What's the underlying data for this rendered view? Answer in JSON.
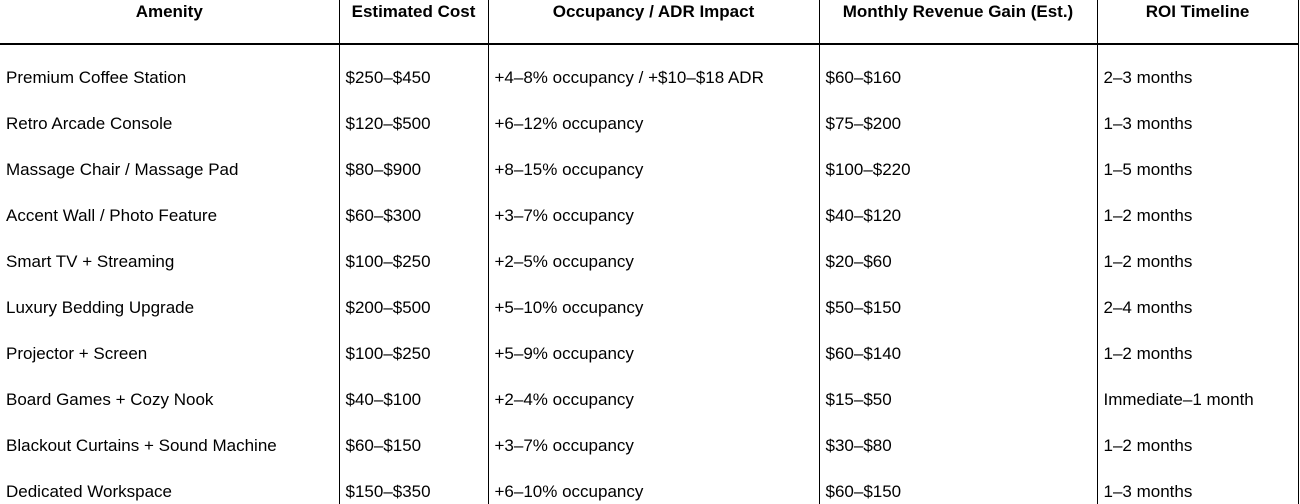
{
  "table": {
    "header": [
      "Amenity",
      "Estimated Cost",
      "Occupancy / ADR Impact",
      "Monthly Revenue Gain (Est.)",
      "ROI Timeline"
    ],
    "rows": [
      [
        "Premium Coffee Station",
        "$250–$450",
        "+4–8% occupancy / +$10–$18 ADR",
        "$60–$160",
        "2–3 months"
      ],
      [
        "Retro Arcade Console",
        "$120–$500",
        "+6–12% occupancy",
        "$75–$200",
        "1–3 months"
      ],
      [
        "Massage Chair / Massage Pad",
        "$80–$900",
        "+8–15% occupancy",
        "$100–$220",
        "1–5 months"
      ],
      [
        "Accent Wall / Photo Feature",
        "$60–$300",
        "+3–7% occupancy",
        "$40–$120",
        "1–2 months"
      ],
      [
        "Smart TV + Streaming",
        "$100–$250",
        "+2–5% occupancy",
        "$20–$60",
        "1–2 months"
      ],
      [
        "Luxury Bedding Upgrade",
        "$200–$500",
        "+5–10% occupancy",
        "$50–$150",
        "2–4 months"
      ],
      [
        "Projector + Screen",
        "$100–$250",
        "+5–9% occupancy",
        "$60–$140",
        "1–2 months"
      ],
      [
        "Board Games + Cozy Nook",
        "$40–$100",
        "+2–4% occupancy",
        "$15–$50",
        "Immediate–1 month"
      ],
      [
        "Blackout Curtains + Sound Machine",
        "$60–$150",
        "+3–7% occupancy",
        "$30–$80",
        "1–2 months"
      ],
      [
        "Dedicated Workspace",
        "$150–$350",
        "+6–10% occupancy",
        "$60–$150",
        "1–3 months"
      ]
    ]
  }
}
